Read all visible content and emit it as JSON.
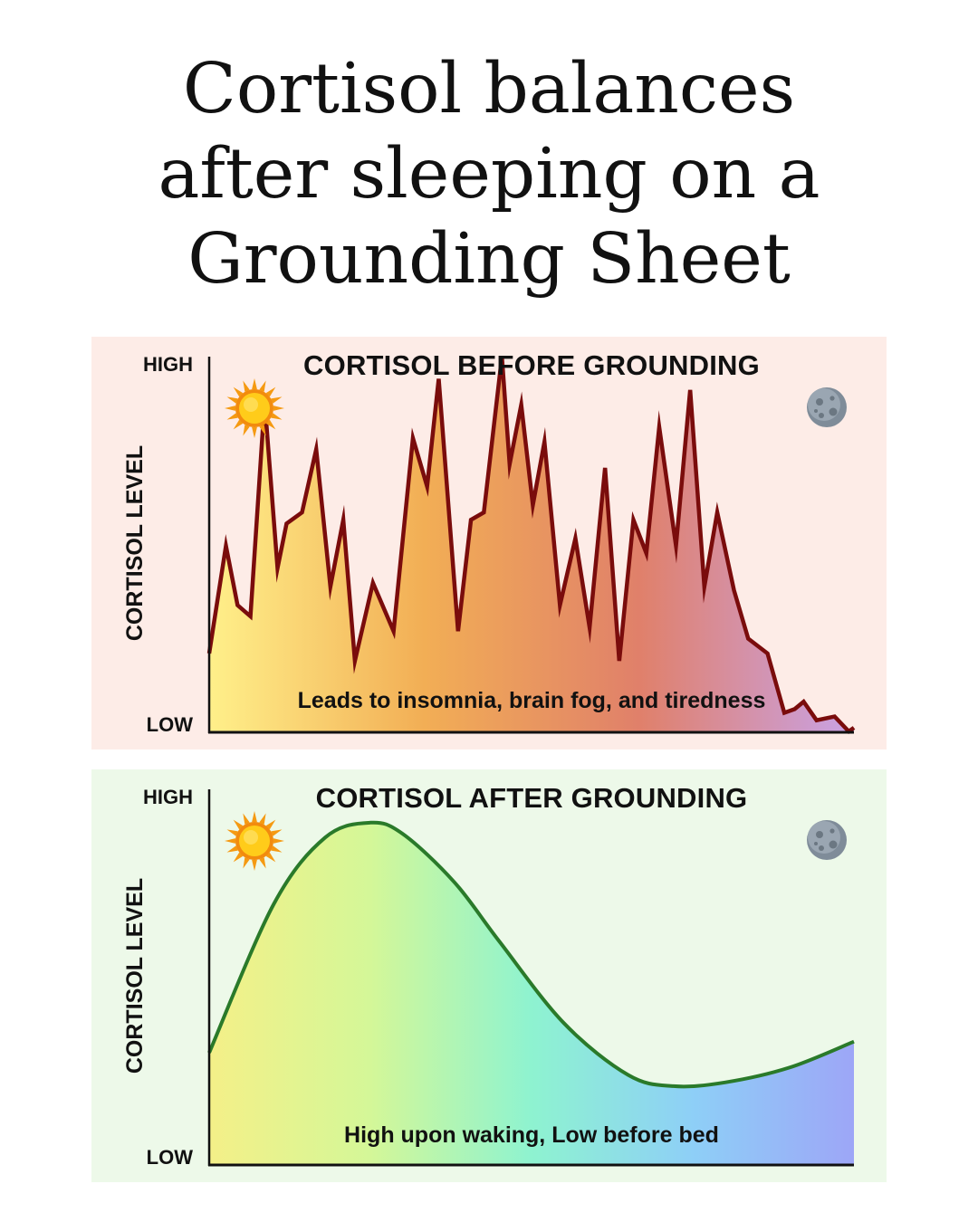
{
  "title_lines": [
    "Cortisol balances",
    "after sleeping on a",
    "Grounding Sheet"
  ],
  "colors": {
    "page_bg": "#ffffff",
    "before_panel_bg": "#fdece7",
    "after_panel_bg": "#edf9e9",
    "before_line": "#7a0c0c",
    "after_line": "#2a7a2a"
  },
  "icons": {
    "start": "sun-icon",
    "end": "moon-icon"
  },
  "chart_data": [
    {
      "type": "area",
      "title": "CORTISOL BEFORE GROUNDING",
      "ylabel": "CORTISOL LEVEL",
      "ytick_high": "HIGH",
      "ytick_low": "LOW",
      "annotation": "Leads to insomnia, brain fog, and tiredness",
      "ylim": [
        0,
        100
      ],
      "xlim": [
        0,
        100
      ],
      "grid": false,
      "x": [
        0,
        2.6,
        4.4,
        6.4,
        8.6,
        10.6,
        12,
        14.4,
        16.6,
        18.8,
        20.8,
        22.6,
        25.4,
        28.6,
        31.6,
        33.8,
        35.6,
        38.6,
        40.6,
        42.6,
        45.4,
        46.6,
        48.4,
        50.2,
        52,
        54.4,
        56.8,
        59,
        61.4,
        63.6,
        65.8,
        67.8,
        69.8,
        72.4,
        74.6,
        76.8,
        78.8,
        81.4,
        83.6,
        86.6,
        89.2,
        90.8,
        92.2,
        94.2,
        97,
        99.2,
        100
      ],
      "y": [
        21,
        50,
        34,
        31,
        89,
        44,
        56,
        59,
        76,
        39,
        57,
        19,
        40,
        27,
        79,
        66,
        95,
        27,
        57,
        59,
        101,
        72,
        88,
        61,
        78,
        34,
        52,
        28,
        71,
        19,
        57,
        48,
        82,
        50,
        92,
        39,
        59,
        38,
        25,
        21,
        5,
        6,
        8,
        3,
        4,
        0,
        1
      ],
      "gradient": [
        "#fff08a",
        "#f2ae55",
        "#e0806a",
        "#c9a2e6"
      ]
    },
    {
      "type": "area",
      "title": "CORTISOL AFTER GROUNDING",
      "ylabel": "CORTISOL LEVEL",
      "ytick_high": "HIGH",
      "ytick_low": "LOW",
      "annotation": "High upon waking, Low before bed",
      "ylim": [
        0,
        100
      ],
      "xlim": [
        0,
        100
      ],
      "grid": false,
      "x": [
        0,
        10,
        18,
        25,
        30,
        38,
        45,
        55,
        65,
        72,
        80,
        90,
        100
      ],
      "y": [
        30,
        70,
        88,
        92,
        89,
        76,
        60,
        38,
        24,
        21,
        22,
        26,
        33
      ],
      "gradient": [
        "#f4f088",
        "#d4f798",
        "#8ef3d0",
        "#8ecff7",
        "#9da6f7"
      ]
    }
  ]
}
